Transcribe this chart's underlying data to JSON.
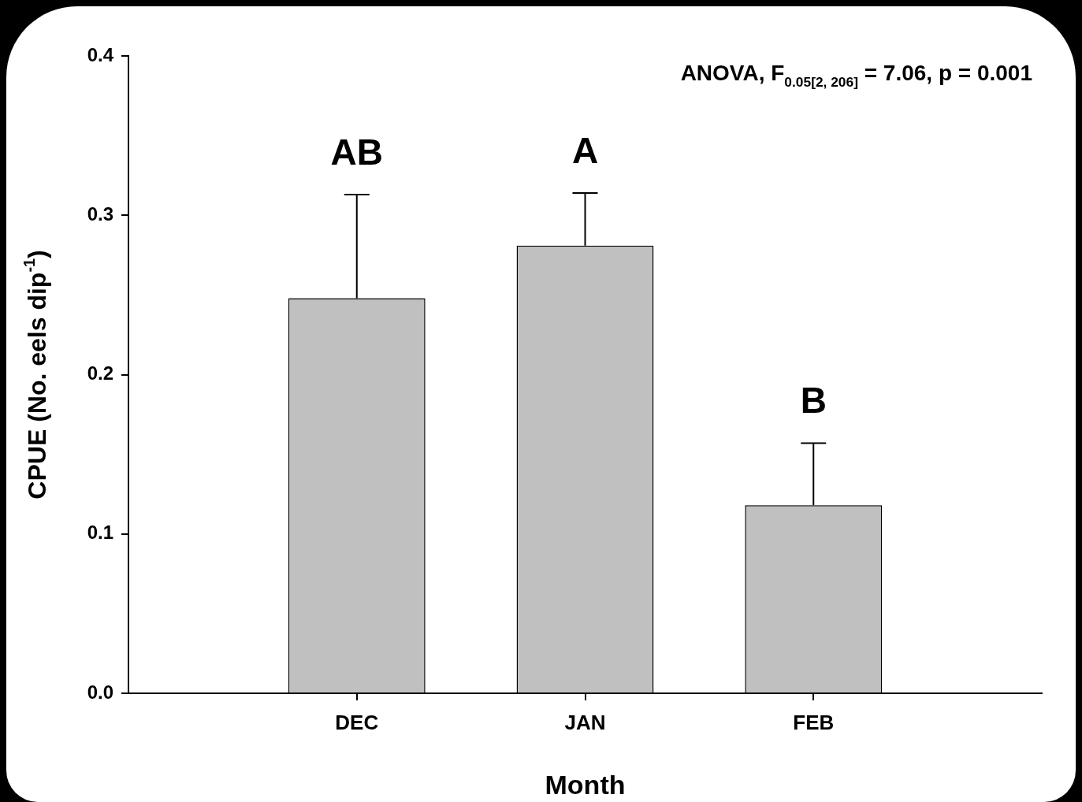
{
  "chart_data": {
    "type": "bar",
    "xlabel": "Month",
    "ylabel": "CPUE (No. eels dip$^{-1}$)",
    "categories": [
      "DEC",
      "JAN",
      "FEB"
    ],
    "values": [
      0.248,
      0.281,
      0.118
    ],
    "errors": [
      [
        0.248,
        0.313
      ],
      [
        0.281,
        0.314
      ],
      [
        0.118,
        0.157
      ]
    ],
    "color": "#c0c0c0",
    "ylim": [
      0,
      0.4
    ],
    "yticks": [
      {
        "value": 0,
        "label": "0.0"
      },
      0.1,
      0.2,
      0.3,
      0.4
    ],
    "grid": false,
    "legend": false,
    "annotations": [
      "AB",
      "A",
      "B",
      "ANOVA, F$_{0.05[2, 206]}$ = 7.06, p = 0.001"
    ]
  }
}
